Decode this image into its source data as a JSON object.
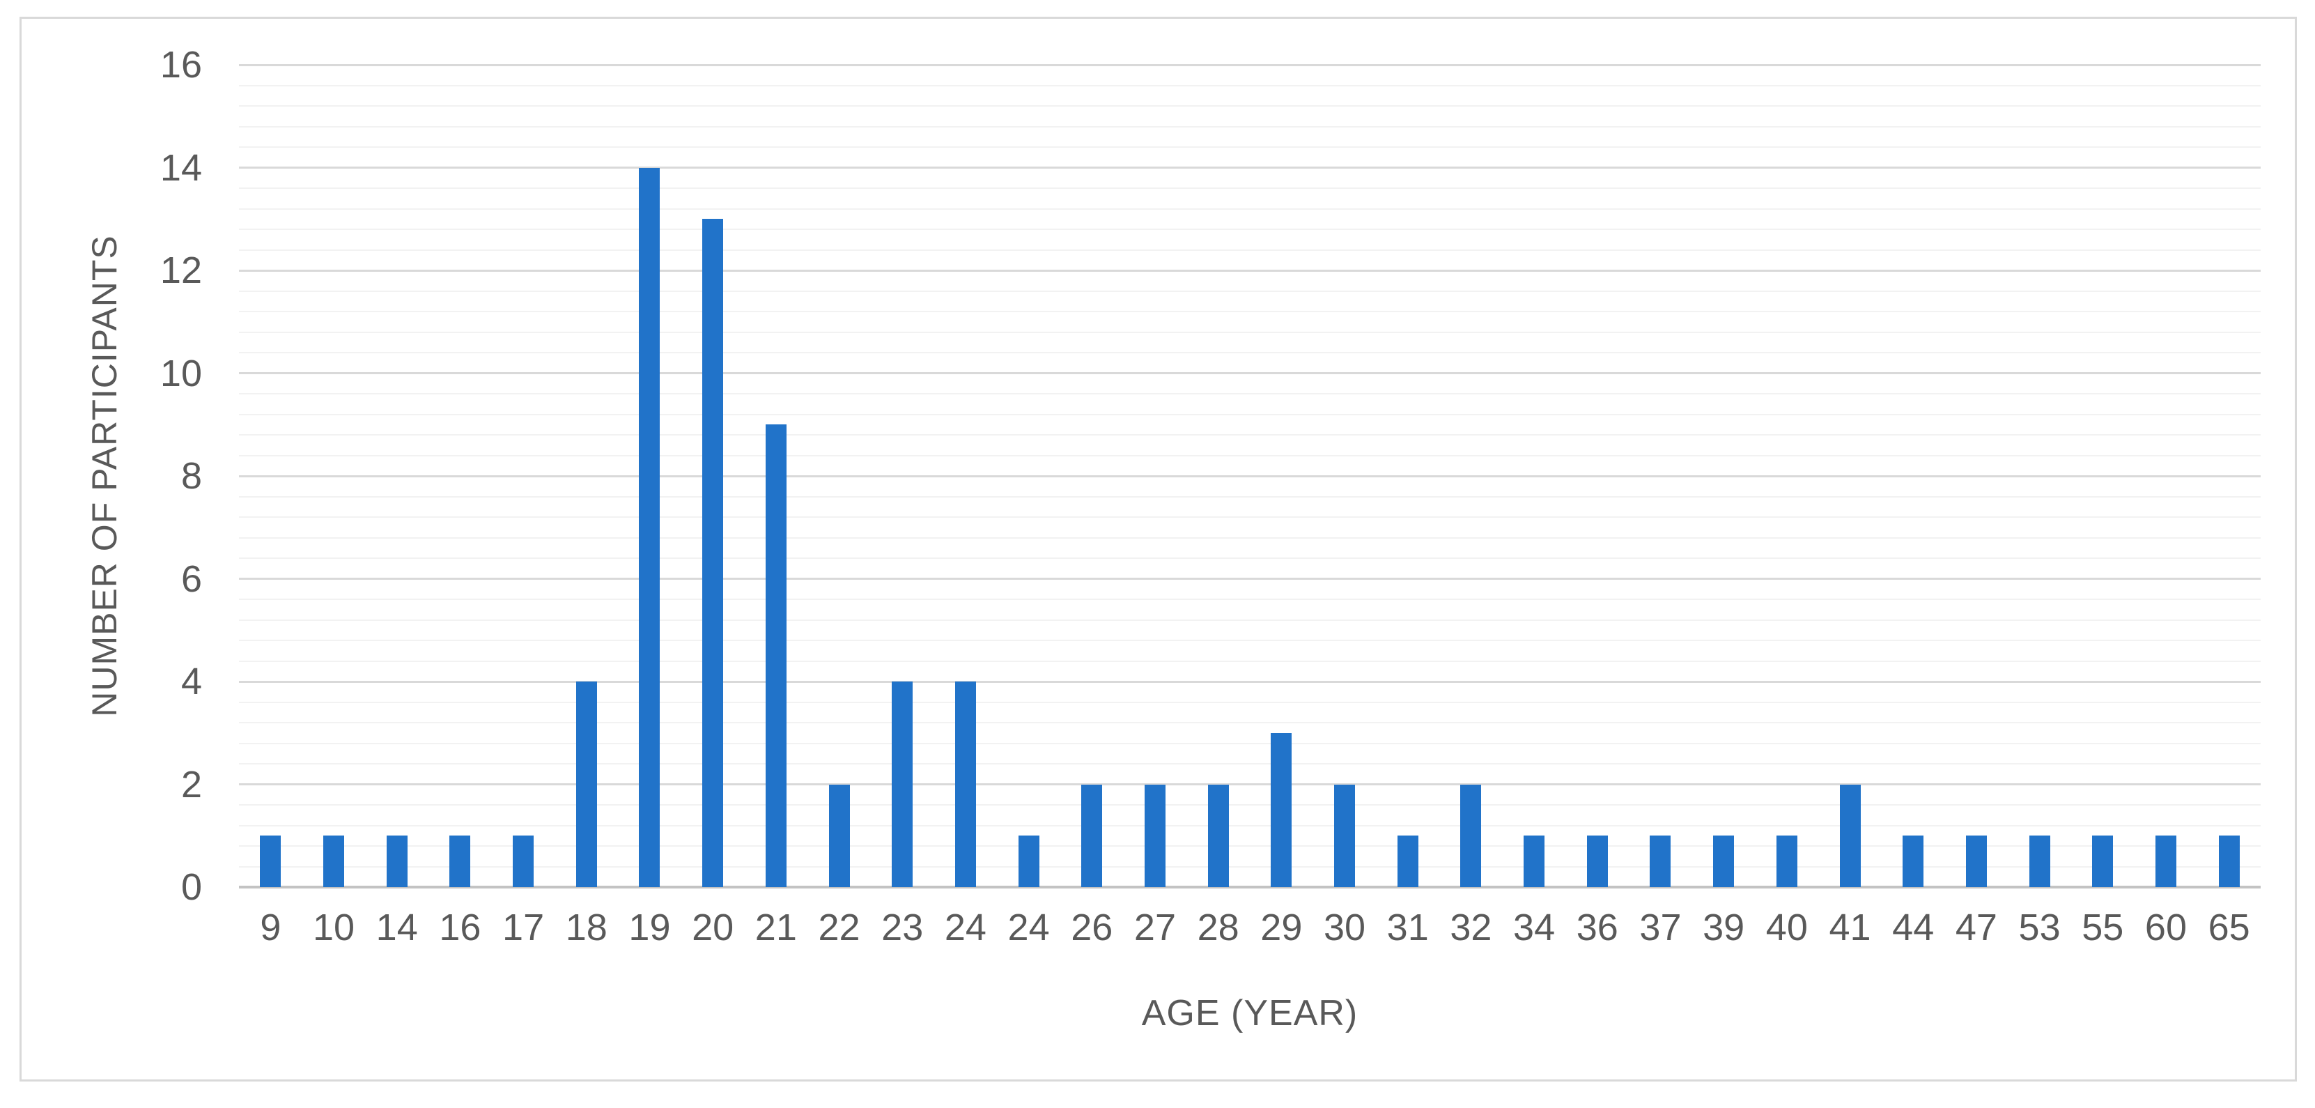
{
  "colors": {
    "bar": "#2173c9",
    "major_gridline": "#d9d9d9",
    "minor_gridline": "#f2f2f2",
    "axis_line": "#c3c3c3",
    "text": "#595959",
    "figure_border": "#d9d9d9",
    "background": "#ffffff"
  },
  "chart_data": {
    "type": "bar",
    "title": "",
    "xlabel": "AGE (YEAR)",
    "ylabel": "NUMBER OF PARTICIPANTS",
    "categories": [
      "9",
      "10",
      "14",
      "16",
      "17",
      "18",
      "19",
      "20",
      "21",
      "22",
      "23",
      "24",
      "24",
      "26",
      "27",
      "28",
      "29",
      "30",
      "31",
      "32",
      "34",
      "36",
      "37",
      "39",
      "40",
      "41",
      "44",
      "47",
      "53",
      "55",
      "60",
      "65"
    ],
    "values": [
      1,
      1,
      1,
      1,
      1,
      4,
      14,
      13,
      9,
      2,
      4,
      4,
      1,
      2,
      2,
      2,
      3,
      2,
      1,
      2,
      1,
      1,
      1,
      1,
      1,
      2,
      1,
      1,
      1,
      1,
      1,
      1
    ],
    "ylim": [
      0,
      16
    ],
    "y_ticks": [
      0,
      2,
      4,
      6,
      8,
      10,
      12,
      14,
      16
    ],
    "y_major_step": 2,
    "y_minor_step": 0.4,
    "grid": true,
    "legend": "none",
    "bar_color": "#2173c9"
  }
}
